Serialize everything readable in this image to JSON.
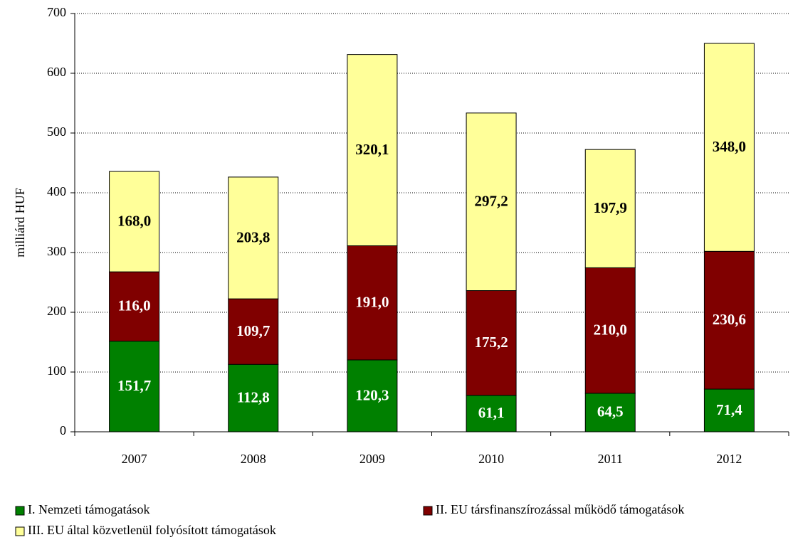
{
  "chart_data": {
    "type": "stacked_bar",
    "y_label": "milliárd HUF",
    "categories": [
      "2007",
      "2008",
      "2009",
      "2010",
      "2011",
      "2012"
    ],
    "series": [
      {
        "name": "I. Nemzeti támogatások",
        "color": "#008000",
        "label_color": "#ffffff",
        "values": [
          151.7,
          112.8,
          120.3,
          61.1,
          64.5,
          71.4
        ],
        "value_labels": [
          "151,7",
          "112,8",
          "120,3",
          "61,1",
          "64,5",
          "71,4"
        ]
      },
      {
        "name": "II. EU társfinanszírozással működő támogatások",
        "color": "#800000",
        "label_color": "#ffffff",
        "values": [
          116.0,
          109.7,
          191.0,
          175.2,
          210.0,
          230.6
        ],
        "value_labels": [
          "116,0",
          "109,7",
          "191,0",
          "175,2",
          "210,0",
          "230,6"
        ]
      },
      {
        "name": "III. EU által közvetlenül folyósított támogatások",
        "color": "#ffff99",
        "label_color": "#000000",
        "values": [
          168.0,
          203.8,
          320.1,
          297.2,
          197.9,
          348.0
        ],
        "value_labels": [
          "168,0",
          "203,8",
          "320,1",
          "297,2",
          "197,9",
          "348,0"
        ]
      }
    ],
    "ylim": [
      0,
      700
    ],
    "yticks": [
      0,
      100,
      200,
      300,
      400,
      500,
      600,
      700
    ],
    "grid": true
  }
}
